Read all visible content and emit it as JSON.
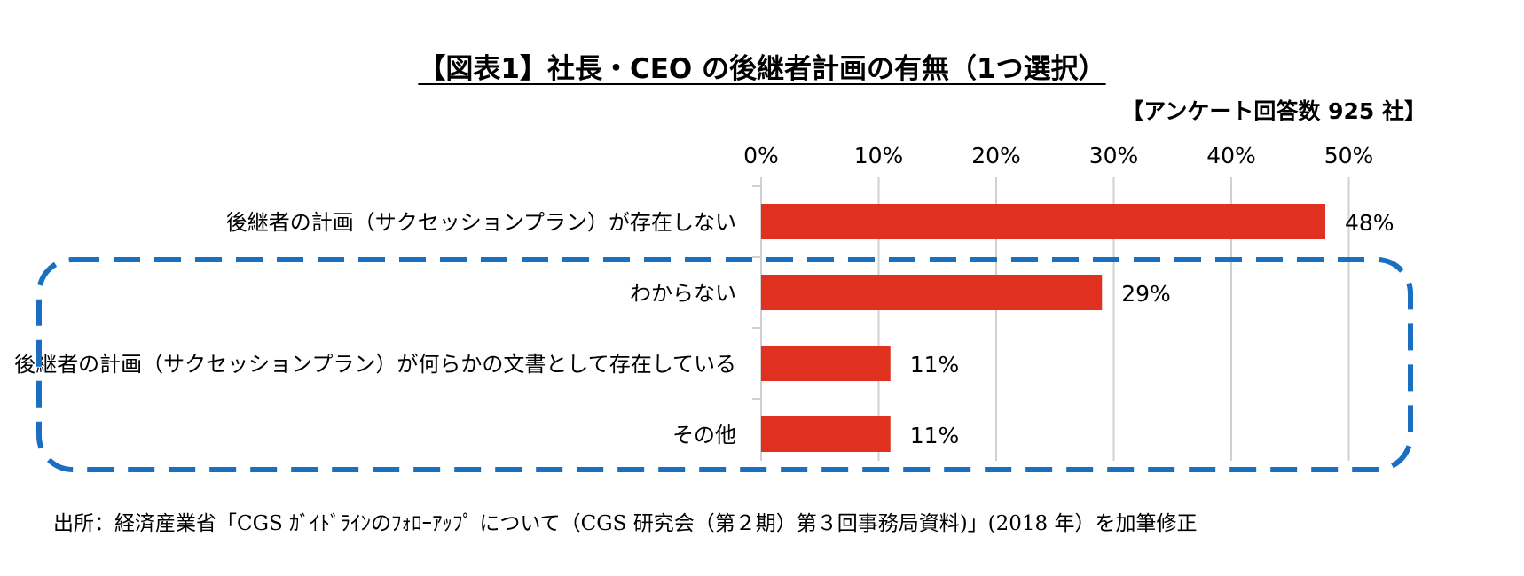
{
  "chart_data": {
    "type": "bar",
    "orientation": "horizontal",
    "title": "【図表1】社長・CEO の後継者計画の有無（1つ選択）",
    "subtitle": "【アンケート回答数 925 社】",
    "categories": [
      "後継者の計画（サクセッションプラン）が存在しない",
      "わからない",
      "後継者の計画（サクセッションプラン）が何らかの文書として存在している",
      "その他"
    ],
    "values": [
      48,
      29,
      11,
      11
    ],
    "data_labels": [
      "48%",
      "29%",
      "11%",
      "11%"
    ],
    "xlim": [
      0,
      50
    ],
    "x_ticks": [
      "0%",
      "10%",
      "20%",
      "30%",
      "40%",
      "50%"
    ],
    "x_axis_position": "top",
    "grid": true,
    "legend": "none",
    "colors": {
      "bar": "#e03020",
      "grid": "#d0d0d0",
      "highlight_box": "#1a6fc0"
    },
    "highlight_box": {
      "style": "dashed rounded",
      "covers_categories": [
        "わからない",
        "後継者の計画（サクセッションプラン）が何らかの文書として存在している",
        "その他"
      ]
    },
    "source": "出所：経済産業省「CGS ｶﾞｲﾄﾞﾗｲﾝのﾌｫﾛｰｱｯﾌﾟ について（CGS 研究会（第２期）第３回事務局資料)」(2018 年）を加筆修正"
  }
}
